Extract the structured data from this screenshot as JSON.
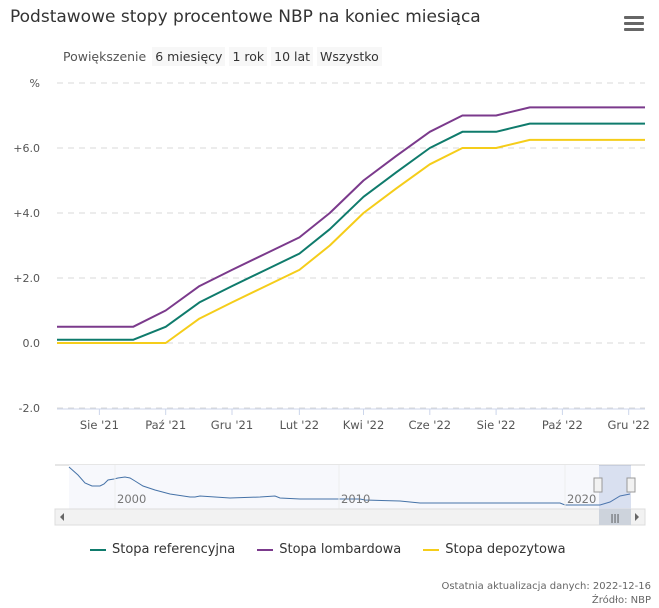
{
  "title": "Podstawowe stopy procentowe NBP na koniec miesiąca",
  "menu_icon": "hamburger-icon",
  "zoom": {
    "label": "Powiększenie",
    "buttons": [
      "6 miesięcy",
      "1 rok",
      "10 lat",
      "Wszystko"
    ]
  },
  "chart_data": {
    "type": "line",
    "title": "Podstawowe stopy procentowe NBP na koniec miesiąca",
    "ylabel": "%",
    "ylim": [
      -2,
      8
    ],
    "yticks": [
      "-2.0",
      "0.0",
      "+2.0",
      "+4.0",
      "+6.0",
      "%"
    ],
    "ytick_values": [
      -2,
      0,
      2,
      4,
      6,
      8
    ],
    "xticks": [
      "Sie '21",
      "Paź '21",
      "Gru '21",
      "Lut '22",
      "Kwi '22",
      "Cze '22",
      "Sie '22",
      "Paź '22",
      "Gru '22"
    ],
    "xtick_dates": [
      "2021-08-01",
      "2021-10-01",
      "2021-12-01",
      "2022-02-01",
      "2022-04-01",
      "2022-06-01",
      "2022-08-01",
      "2022-10-01",
      "2022-12-01"
    ],
    "xlim": [
      "2021-06-23",
      "2022-12-16"
    ],
    "grid": true,
    "legend_position": "bottom",
    "x": [
      "2021-06-23",
      "2021-09-01",
      "2021-10-01",
      "2021-11-01",
      "2021-12-01",
      "2022-01-01",
      "2022-02-01",
      "2022-03-01",
      "2022-04-01",
      "2022-05-01",
      "2022-06-01",
      "2022-07-01",
      "2022-08-01",
      "2022-09-01",
      "2022-12-16"
    ],
    "series": [
      {
        "name": "Stopa referencyjna",
        "color": "#0f7b6c",
        "values": [
          0.1,
          0.1,
          0.5,
          1.25,
          1.75,
          2.25,
          2.75,
          3.5,
          4.5,
          5.25,
          6.0,
          6.5,
          6.5,
          6.75,
          6.75
        ]
      },
      {
        "name": "Stopa lombardowa",
        "color": "#7b3a8c",
        "values": [
          0.5,
          0.5,
          1.0,
          1.75,
          2.25,
          2.75,
          3.25,
          4.0,
          5.0,
          5.75,
          6.5,
          7.0,
          7.0,
          7.25,
          7.25
        ]
      },
      {
        "name": "Stopa depozytowa",
        "color": "#f5cd1a",
        "values": [
          0.0,
          0.0,
          0.0,
          0.75,
          1.25,
          1.75,
          2.25,
          3.0,
          4.0,
          4.75,
          5.5,
          6.0,
          6.0,
          6.25,
          6.25
        ]
      }
    ],
    "navigator": {
      "labels": [
        "2000",
        "2010",
        "2020"
      ]
    }
  },
  "footer": {
    "updated": "Ostatnia aktualizacja danych: 2022-12-16",
    "source": "Źródło: NBP"
  }
}
